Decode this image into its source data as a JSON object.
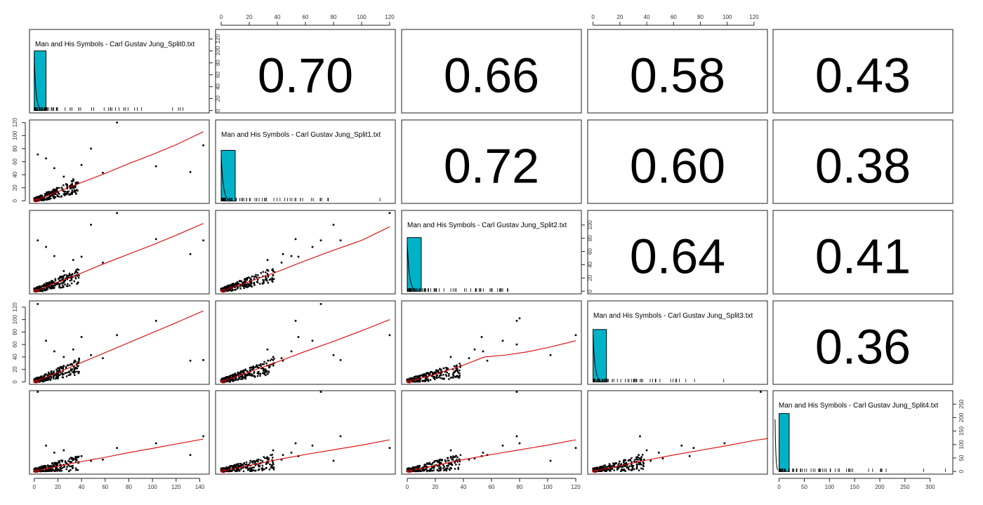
{
  "chart_data": {
    "type": "scatter-matrix",
    "variables": [
      "Man and His Symbols - Carl Gustav Jung_Split0.txt",
      "Man and His Symbols - Carl Gustav Jung_Split1.txt",
      "Man and His Symbols - Carl Gustav Jung_Split2.txt",
      "Man and His Symbols - Carl Gustav Jung_Split3.txt",
      "Man and His Symbols - Carl Gustav Jung_Split4.txt"
    ],
    "correlations": [
      {
        "row": 0,
        "col": 1,
        "value": "0.70"
      },
      {
        "row": 0,
        "col": 2,
        "value": "0.66"
      },
      {
        "row": 0,
        "col": 3,
        "value": "0.58"
      },
      {
        "row": 0,
        "col": 4,
        "value": "0.43"
      },
      {
        "row": 1,
        "col": 2,
        "value": "0.72"
      },
      {
        "row": 1,
        "col": 3,
        "value": "0.60"
      },
      {
        "row": 1,
        "col": 4,
        "value": "0.38"
      },
      {
        "row": 2,
        "col": 3,
        "value": "0.64"
      },
      {
        "row": 2,
        "col": 4,
        "value": "0.41"
      },
      {
        "row": 3,
        "col": 4,
        "value": "0.36"
      }
    ],
    "axis_ranges": [
      [
        -4,
        148
      ],
      [
        -4,
        124
      ],
      [
        -4,
        124
      ],
      [
        -4,
        130
      ],
      [
        -12,
        345
      ]
    ],
    "axis_ticks": [
      [
        0,
        20,
        40,
        60,
        80,
        100,
        120,
        140
      ],
      [
        0,
        20,
        40,
        60,
        80,
        100,
        120
      ],
      [
        0,
        20,
        40,
        60,
        80,
        100,
        120
      ],
      [
        0,
        20,
        40,
        60,
        80,
        100,
        120
      ],
      [
        0,
        50,
        100,
        150,
        200,
        250,
        300
      ]
    ],
    "histograms": [
      {
        "var": 0,
        "bins": [
          [
            0,
            10,
            100
          ]
        ],
        "ylim": [
          -4,
          136
        ],
        "yticks": [
          0,
          20,
          40,
          60,
          80,
          100,
          120
        ],
        "tick_side": "right"
      },
      {
        "var": 1,
        "bins": [
          [
            0,
            10,
            85
          ]
        ],
        "ylim": [
          -4,
          136
        ],
        "yticks": [],
        "tick_side": "none"
      },
      {
        "var": 2,
        "bins": [
          [
            0,
            10,
            81
          ]
        ],
        "ylim": [
          -4,
          122
        ],
        "yticks": [
          0,
          20,
          40,
          60,
          80,
          100
        ],
        "tick_side": "right"
      },
      {
        "var": 3,
        "bins": [
          [
            0,
            10,
            88
          ]
        ],
        "ylim": [
          -4,
          136
        ],
        "yticks": [],
        "tick_side": "none"
      },
      {
        "var": 4,
        "bins": [
          [
            0,
            20,
            215
          ]
        ],
        "ylim": [
          -10,
          300
        ],
        "yticks": [
          0,
          50,
          100,
          150,
          200,
          250
        ],
        "tick_side": "right"
      }
    ],
    "pairs": [
      {
        "x": 0,
        "y": 1,
        "outliers": [
          [
            70,
            120
          ],
          [
            143,
            85
          ],
          [
            103,
            53
          ],
          [
            132,
            44
          ],
          [
            48,
            80
          ],
          [
            58,
            43
          ],
          [
            3,
            71
          ],
          [
            40,
            55
          ],
          [
            25,
            37
          ],
          [
            33,
            33
          ],
          [
            10,
            65
          ],
          [
            17,
            50
          ]
        ],
        "smooth": [
          [
            0,
            0
          ],
          [
            20,
            14
          ],
          [
            40,
            28
          ],
          [
            60,
            42
          ],
          [
            80,
            57
          ],
          [
            100,
            71
          ],
          [
            120,
            86
          ],
          [
            143,
            106
          ]
        ]
      },
      {
        "x": 0,
        "y": 2,
        "outliers": [
          [
            70,
            120
          ],
          [
            143,
            78
          ],
          [
            103,
            80
          ],
          [
            132,
            57
          ],
          [
            48,
            102
          ],
          [
            58,
            44
          ],
          [
            3,
            78
          ],
          [
            40,
            53
          ],
          [
            25,
            31
          ],
          [
            33,
            48
          ],
          [
            10,
            68
          ],
          [
            17,
            54
          ]
        ],
        "smooth": [
          [
            0,
            0
          ],
          [
            20,
            14
          ],
          [
            40,
            28
          ],
          [
            60,
            43
          ],
          [
            80,
            57
          ],
          [
            100,
            71
          ],
          [
            120,
            86
          ],
          [
            143,
            104
          ]
        ]
      },
      {
        "x": 1,
        "y": 2,
        "outliers": [
          [
            120,
            120
          ],
          [
            85,
            78
          ],
          [
            53,
            80
          ],
          [
            44,
            57
          ],
          [
            80,
            102
          ],
          [
            43,
            44
          ],
          [
            71,
            78
          ],
          [
            55,
            53
          ],
          [
            37,
            31
          ],
          [
            33,
            48
          ],
          [
            65,
            68
          ],
          [
            50,
            54
          ]
        ],
        "smooth": [
          [
            0,
            0
          ],
          [
            20,
            15
          ],
          [
            40,
            30
          ],
          [
            60,
            47
          ],
          [
            80,
            63
          ],
          [
            100,
            78
          ],
          [
            120,
            99
          ]
        ]
      },
      {
        "x": 0,
        "y": 3,
        "outliers": [
          [
            70,
            75
          ],
          [
            143,
            35
          ],
          [
            103,
            98
          ],
          [
            132,
            34
          ],
          [
            48,
            43
          ],
          [
            58,
            38
          ],
          [
            3,
            125
          ],
          [
            40,
            72
          ],
          [
            25,
            40
          ],
          [
            33,
            52
          ],
          [
            10,
            66
          ],
          [
            17,
            49
          ]
        ],
        "smooth": [
          [
            0,
            0
          ],
          [
            20,
            15
          ],
          [
            40,
            31
          ],
          [
            60,
            47
          ],
          [
            80,
            63
          ],
          [
            100,
            79
          ],
          [
            120,
            95
          ],
          [
            143,
            114
          ]
        ]
      },
      {
        "x": 1,
        "y": 3,
        "outliers": [
          [
            120,
            75
          ],
          [
            85,
            35
          ],
          [
            53,
            98
          ],
          [
            44,
            34
          ],
          [
            80,
            43
          ],
          [
            43,
            38
          ],
          [
            71,
            125
          ],
          [
            55,
            72
          ],
          [
            37,
            40
          ],
          [
            33,
            52
          ],
          [
            65,
            66
          ],
          [
            50,
            49
          ]
        ],
        "smooth": [
          [
            0,
            0
          ],
          [
            20,
            16
          ],
          [
            40,
            32
          ],
          [
            60,
            49
          ],
          [
            80,
            65
          ],
          [
            100,
            82
          ],
          [
            120,
            100
          ]
        ]
      },
      {
        "x": 2,
        "y": 3,
        "outliers": [
          [
            120,
            75
          ],
          [
            78,
            98
          ],
          [
            80,
            102
          ],
          [
            57,
            34
          ],
          [
            102,
            43
          ],
          [
            44,
            38
          ],
          [
            78,
            60
          ],
          [
            53,
            72
          ],
          [
            31,
            40
          ],
          [
            48,
            52
          ],
          [
            68,
            66
          ],
          [
            54,
            49
          ]
        ],
        "smooth": [
          [
            0,
            0
          ],
          [
            20,
            12
          ],
          [
            40,
            27
          ],
          [
            55,
            40
          ],
          [
            70,
            43
          ],
          [
            85,
            48
          ],
          [
            100,
            55
          ],
          [
            120,
            66
          ]
        ]
      },
      {
        "x": 0,
        "y": 4,
        "outliers": [
          [
            70,
            100
          ],
          [
            143,
            150
          ],
          [
            103,
            120
          ],
          [
            132,
            70
          ],
          [
            48,
            45
          ],
          [
            58,
            50
          ],
          [
            3,
            340
          ],
          [
            40,
            65
          ],
          [
            25,
            90
          ],
          [
            33,
            55
          ],
          [
            10,
            110
          ],
          [
            17,
            80
          ]
        ],
        "smooth": [
          [
            0,
            0
          ],
          [
            20,
            22
          ],
          [
            40,
            42
          ],
          [
            60,
            60
          ],
          [
            80,
            80
          ],
          [
            100,
            98
          ],
          [
            120,
            117
          ],
          [
            143,
            138
          ]
        ]
      },
      {
        "x": 1,
        "y": 4,
        "outliers": [
          [
            120,
            100
          ],
          [
            85,
            150
          ],
          [
            53,
            120
          ],
          [
            44,
            70
          ],
          [
            80,
            45
          ],
          [
            43,
            50
          ],
          [
            71,
            340
          ],
          [
            55,
            65
          ],
          [
            37,
            90
          ],
          [
            33,
            55
          ],
          [
            65,
            110
          ],
          [
            50,
            80
          ]
        ],
        "smooth": [
          [
            0,
            0
          ],
          [
            20,
            25
          ],
          [
            40,
            50
          ],
          [
            60,
            72
          ],
          [
            80,
            92
          ],
          [
            100,
            112
          ],
          [
            120,
            135
          ]
        ]
      },
      {
        "x": 2,
        "y": 4,
        "outliers": [
          [
            120,
            100
          ],
          [
            78,
            150
          ],
          [
            80,
            120
          ],
          [
            57,
            70
          ],
          [
            102,
            45
          ],
          [
            44,
            50
          ],
          [
            78,
            340
          ],
          [
            53,
            65
          ],
          [
            31,
            90
          ],
          [
            48,
            55
          ],
          [
            68,
            110
          ],
          [
            54,
            80
          ]
        ],
        "smooth": [
          [
            0,
            0
          ],
          [
            20,
            25
          ],
          [
            40,
            50
          ],
          [
            60,
            72
          ],
          [
            80,
            92
          ],
          [
            100,
            112
          ],
          [
            120,
            135
          ]
        ]
      },
      {
        "x": 3,
        "y": 4,
        "outliers": [
          [
            75,
            100
          ],
          [
            35,
            150
          ],
          [
            98,
            120
          ],
          [
            34,
            70
          ],
          [
            43,
            45
          ],
          [
            38,
            50
          ],
          [
            125,
            340
          ],
          [
            72,
            65
          ],
          [
            40,
            90
          ],
          [
            52,
            55
          ],
          [
            66,
            110
          ],
          [
            49,
            80
          ]
        ],
        "smooth": [
          [
            0,
            0
          ],
          [
            20,
            24
          ],
          [
            40,
            48
          ],
          [
            60,
            70
          ],
          [
            80,
            90
          ],
          [
            100,
            110
          ],
          [
            120,
            132
          ],
          [
            130,
            140
          ]
        ]
      }
    ],
    "colors": {
      "hist_fill": "#00b2c8",
      "smooth_line": "#dd0000",
      "points": "#000000",
      "axis": "#222222"
    },
    "top_axes_columns": [
      1,
      3
    ],
    "bottom_axes_columns": [
      0,
      2,
      4
    ],
    "left_axes_rows": [
      1,
      3
    ],
    "right_axes_rows": [
      0,
      2,
      4
    ]
  }
}
